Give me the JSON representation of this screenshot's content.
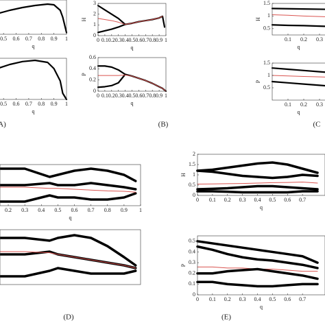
{
  "chart_data": [
    {
      "type": "line",
      "x": [
        0.45,
        0.55,
        0.65,
        0.75,
        0.85,
        0.9,
        0.95,
        0.97,
        1
      ],
      "xlim": [
        0.45,
        1
      ],
      "ylim": [
        0,
        1
      ],
      "xticks": [
        0.5,
        0.6,
        0.7,
        0.8,
        0.9,
        1
      ],
      "xlabel": "q",
      "series": [
        {
          "color": "#000000",
          "values": [
            0.6,
            0.7,
            0.78,
            0.84,
            0.88,
            0.86,
            0.7,
            0.5,
            0.05
          ]
        }
      ]
    },
    {
      "type": "line",
      "x": [
        0.45,
        0.55,
        0.65,
        0.75,
        0.85,
        0.9,
        0.95,
        0.97,
        1
      ],
      "xlim": [
        0.45,
        1
      ],
      "ylim": [
        0,
        1
      ],
      "xticks": [
        0.5,
        0.6,
        0.7,
        0.8,
        0.9,
        1
      ],
      "xlabel": "q",
      "panel_label": "A)",
      "series": [
        {
          "color": "#000000",
          "values": [
            0.75,
            0.85,
            0.92,
            0.95,
            0.9,
            0.75,
            0.45,
            0.15,
            0
          ]
        }
      ]
    },
    {
      "type": "line",
      "x": [
        0,
        0.1,
        0.2,
        0.3,
        0.4,
        0.5,
        0.6,
        0.7,
        0.8,
        0.9,
        0.95,
        0.98,
        1
      ],
      "xlim": [
        0,
        1
      ],
      "ylim": [
        0,
        3
      ],
      "xticks": [
        0,
        0.1,
        0.2,
        0.3,
        0.4,
        0.5,
        0.6,
        0.7,
        0.8,
        0.9,
        1
      ],
      "yticks": [
        0,
        1,
        2,
        3
      ],
      "xlabel": "q",
      "ylabel": "H",
      "series": [
        {
          "color": "#000000",
          "values": [
            2.8,
            2.4,
            2.0,
            1.6,
            1.05,
            1.15,
            1.3,
            1.4,
            1.5,
            1.65,
            1.8,
            0.8,
            null
          ]
        },
        {
          "color": "#000000",
          "values": [
            0.3,
            0.45,
            0.6,
            0.8,
            1.05,
            null,
            null,
            null,
            null,
            null,
            null,
            null,
            null
          ]
        },
        {
          "color": "#d9534f",
          "values": [
            1.6,
            1.5,
            1.4,
            1.25,
            1.05,
            1.15,
            1.3,
            1.4,
            1.5,
            1.65,
            1.8,
            null,
            null
          ]
        }
      ]
    },
    {
      "type": "line",
      "x": [
        0,
        0.1,
        0.2,
        0.3,
        0.4,
        0.5,
        0.6,
        0.7,
        0.8,
        0.9,
        0.95,
        0.98,
        1
      ],
      "xlim": [
        0,
        1
      ],
      "ylim": [
        0,
        0.6
      ],
      "xticks": [
        0,
        0.1,
        0.2,
        0.3,
        0.4,
        0.5,
        0.6,
        0.7,
        0.8,
        0.9,
        1
      ],
      "yticks": [
        0,
        0.2,
        0.4,
        0.6
      ],
      "xlabel": "q",
      "ylabel": "P",
      "panel_label": "(B)",
      "series": [
        {
          "color": "#000000",
          "values": [
            0.45,
            0.45,
            0.43,
            0.38,
            0.3,
            0.27,
            0.23,
            0.19,
            0.14,
            0.08,
            0.05,
            0.02,
            0
          ]
        },
        {
          "color": "#000000",
          "values": [
            0.07,
            0.08,
            0.1,
            0.15,
            0.3,
            null,
            null,
            null,
            null,
            null,
            null,
            null,
            null
          ]
        },
        {
          "color": "#d9534f",
          "values": [
            0.28,
            0.28,
            0.28,
            0.28,
            0.29,
            0.27,
            0.23,
            0.19,
            0.14,
            0.08,
            0.05,
            0.02,
            0
          ]
        }
      ]
    },
    {
      "type": "line",
      "x": [
        0,
        0.1,
        0.2,
        0.3,
        0.4
      ],
      "xlim": [
        0,
        0.4
      ],
      "ylim": [
        0.25,
        1.5
      ],
      "xticks": [
        0.1,
        0.2,
        0.3
      ],
      "yticks": [
        0.5,
        1,
        1.5
      ],
      "xlabel": "q",
      "ylabel": "H",
      "series": [
        {
          "color": "#000000",
          "values": [
            1.3,
            1.29,
            1.28,
            1.27,
            1.26
          ]
        },
        {
          "color": "#d9534f",
          "values": [
            1.05,
            1.03,
            1.0,
            0.98,
            0.96
          ]
        },
        {
          "color": "#000000",
          "values": [
            0.65,
            0.63,
            0.62,
            0.6,
            0.58
          ]
        }
      ]
    },
    {
      "type": "line",
      "x": [
        0,
        0.1,
        0.2,
        0.3,
        0.4
      ],
      "xlim": [
        0,
        0.4
      ],
      "ylim": [
        0,
        1.5
      ],
      "xticks": [
        0.1,
        0.2,
        0.3
      ],
      "yticks": [
        0.5,
        1,
        1.5
      ],
      "xlabel": "q",
      "ylabel": "P",
      "panel_label": "(C",
      "series": [
        {
          "color": "#000000",
          "values": [
            1.3,
            1.25,
            1.2,
            1.15,
            1.1
          ]
        },
        {
          "color": "#d9534f",
          "values": [
            1.0,
            0.98,
            0.96,
            0.94,
            0.92
          ]
        },
        {
          "color": "#000000",
          "values": [
            0.75,
            0.7,
            0.65,
            0.6,
            0.55
          ]
        }
      ]
    },
    {
      "type": "line",
      "x": [
        0.15,
        0.3,
        0.45,
        0.5,
        0.6,
        0.7,
        0.8,
        0.9,
        0.97
      ],
      "xlim": [
        0.15,
        1
      ],
      "ylim": [
        0,
        1
      ],
      "xticks": [
        0.2,
        0.3,
        0.4,
        0.5,
        0.6,
        0.7,
        0.8,
        0.9,
        1
      ],
      "xlabel": "q",
      "series": [
        {
          "color": "#000000",
          "values": [
            0.9,
            0.9,
            0.7,
            0.75,
            0.85,
            0.9,
            0.85,
            0.75,
            0.6
          ]
        },
        {
          "color": "#000000",
          "values": [
            0.5,
            0.5,
            0.55,
            0.5,
            0.5,
            0.55,
            0.5,
            0.45,
            0.4
          ]
        },
        {
          "color": "#000000",
          "values": [
            0.1,
            0.1,
            0.25,
            0.2,
            0.2,
            0.15,
            0.15,
            0.2,
            0.3
          ]
        },
        {
          "color": "#d9534f",
          "values": [
            0.45,
            0.45,
            0.42,
            0.42,
            0.4,
            0.38,
            0.36,
            0.35,
            0.33
          ]
        }
      ]
    },
    {
      "type": "line",
      "x": [
        0.15,
        0.3,
        0.45,
        0.5,
        0.6,
        0.7,
        0.8,
        0.9,
        0.97
      ],
      "xlim": [
        0.15,
        1
      ],
      "ylim": [
        0,
        1
      ],
      "panel_label": "(D)",
      "series": [
        {
          "color": "#000000",
          "values": [
            0.85,
            0.85,
            0.8,
            0.85,
            0.9,
            0.85,
            0.7,
            0.5,
            0.35
          ]
        },
        {
          "color": "#000000",
          "values": [
            0.55,
            0.55,
            0.6,
            0.55,
            0.5,
            0.45,
            0.4,
            0.35,
            0.3
          ]
        },
        {
          "color": "#000000",
          "values": [
            0.15,
            0.15,
            0.25,
            0.3,
            0.25,
            0.2,
            0.2,
            0.2,
            0.25
          ]
        },
        {
          "color": "#d9534f",
          "values": [
            0.6,
            0.6,
            0.58,
            0.55,
            0.5,
            0.45,
            0.4,
            0.35,
            0.3
          ]
        }
      ]
    },
    {
      "type": "line",
      "x": [
        0,
        0.1,
        0.2,
        0.3,
        0.4,
        0.5,
        0.6,
        0.7,
        0.8
      ],
      "xlim": [
        0,
        0.85
      ],
      "ylim": [
        0,
        2
      ],
      "xticks": [
        0,
        0.1,
        0.2,
        0.3,
        0.4,
        0.5,
        0.6,
        0.7
      ],
      "yticks": [
        0,
        0.5,
        1,
        1.5,
        2
      ],
      "xlabel": "q",
      "ylabel": "H",
      "series": [
        {
          "color": "#000000",
          "values": [
            1.2,
            1.25,
            1.35,
            1.45,
            1.55,
            1.6,
            1.5,
            1.3,
            1.1
          ]
        },
        {
          "color": "#000000",
          "values": [
            1.2,
            1.15,
            1.05,
            0.95,
            0.9,
            0.85,
            0.9,
            1.0,
            0.95
          ]
        },
        {
          "color": "#d9534f",
          "values": [
            0.55,
            0.56,
            0.57,
            0.58,
            0.6,
            0.62,
            0.63,
            0.65,
            0.6
          ]
        },
        {
          "color": "#000000",
          "values": [
            0.3,
            0.32,
            0.35,
            0.4,
            0.45,
            0.45,
            0.4,
            0.35,
            0.3
          ]
        },
        {
          "color": "#000000",
          "values": [
            0.2,
            0.2,
            0.18,
            0.15,
            0.15,
            0.15,
            0.15,
            0.2,
            0.2
          ]
        }
      ]
    },
    {
      "type": "line",
      "x": [
        0,
        0.1,
        0.2,
        0.3,
        0.4,
        0.5,
        0.6,
        0.7,
        0.8
      ],
      "xlim": [
        0,
        0.85
      ],
      "ylim": [
        0,
        0.55
      ],
      "xticks": [
        0,
        0.1,
        0.2,
        0.3,
        0.4,
        0.5,
        0.6,
        0.7
      ],
      "yticks": [
        0,
        0.1,
        0.2,
        0.3,
        0.4,
        0.5
      ],
      "xlabel": "q",
      "ylabel": "P",
      "panel_label": "(E)",
      "series": [
        {
          "color": "#000000",
          "values": [
            0.5,
            0.48,
            0.46,
            0.44,
            0.42,
            0.4,
            0.38,
            0.36,
            0.3
          ]
        },
        {
          "color": "#000000",
          "values": [
            0.45,
            0.42,
            0.38,
            0.35,
            0.33,
            0.32,
            0.3,
            0.28,
            0.25
          ]
        },
        {
          "color": "#d9534f",
          "values": [
            0.26,
            0.26,
            0.25,
            0.25,
            0.24,
            0.24,
            0.23,
            0.22,
            0.22
          ]
        },
        {
          "color": "#000000",
          "values": [
            0.2,
            0.2,
            0.22,
            0.23,
            0.24,
            0.22,
            0.2,
            0.18,
            0.15
          ]
        },
        {
          "color": "#000000",
          "values": [
            0.12,
            0.12,
            0.1,
            0.09,
            0.08,
            0.08,
            0.09,
            0.1,
            0.1
          ]
        }
      ]
    }
  ]
}
